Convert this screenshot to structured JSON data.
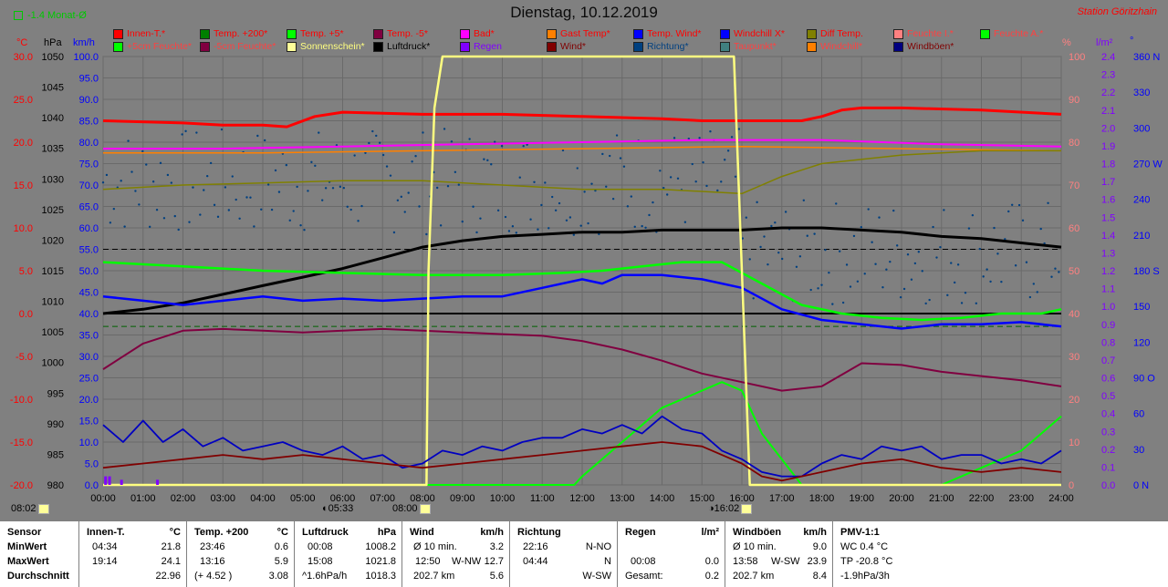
{
  "toggle_label": "-1.4 Monat-Ø",
  "title": "Dienstag, 10.12.2019",
  "station": "Station Göritzhain",
  "units_left": [
    "°C",
    "hPa",
    "km/h"
  ],
  "units_right": [
    "%",
    "l/m²",
    "°"
  ],
  "legend_row1": [
    {
      "label": "Innen-T.*",
      "color": "#ff0000",
      "text_color": "#ff0000"
    },
    {
      "label": "Temp. +200*",
      "color": "#008000",
      "text_color": "#ff0000"
    },
    {
      "label": "Temp. +5*",
      "color": "#00ff00",
      "text_color": "#ff0000"
    },
    {
      "label": "Temp. -5*",
      "color": "#800040",
      "text_color": "#ff0000"
    },
    {
      "label": "Bad*",
      "color": "#ff00ff",
      "text_color": "#ff0000"
    },
    {
      "label": "Gast Temp*",
      "color": "#ff8000",
      "text_color": "#ff0000"
    },
    {
      "label": "Temp. Wind*",
      "color": "#0000ff",
      "text_color": "#ff0000"
    },
    {
      "label": "Windchill X*",
      "color": "#0000ff",
      "text_color": "#ff0000"
    },
    {
      "label": "Diff Temp.",
      "color": "#808000",
      "text_color": "#ff0000"
    },
    {
      "label": "Feuchte I.*",
      "color": "#ff8080",
      "text_color": "#ff4040"
    },
    {
      "label": "Feuchte A.*",
      "color": "#00ff00",
      "text_color": "#ff4040"
    }
  ],
  "legend_row2": [
    {
      "label": "+5cm Feuchte*",
      "color": "#00ff00",
      "text_color": "#ff4040"
    },
    {
      "label": "-5cm Feuchte*",
      "color": "#800040",
      "text_color": "#ff4040"
    },
    {
      "label": "Sonnenschein*",
      "color": "#ffff99",
      "text_color": "#ffff80"
    },
    {
      "label": "Luftdruck*",
      "color": "#000000",
      "text_color": "#000000"
    },
    {
      "label": "Regen",
      "color": "#8000ff",
      "text_color": "#8000ff"
    },
    {
      "label": "Wind*",
      "color": "#800000",
      "text_color": "#800000"
    },
    {
      "label": "Richtung*",
      "color": "#004080",
      "text_color": "#004080"
    },
    {
      "label": "Taupunkt*",
      "color": "#408080",
      "text_color": "#ff4040"
    },
    {
      "label": "Windchill*",
      "color": "#ff8000",
      "text_color": "#ff4040"
    },
    {
      "label": "Windböen*",
      "color": "#000080",
      "text_color": "#800000"
    }
  ],
  "sun": {
    "rise": "08:02",
    "set": "16:02",
    "rise_marker": "05:33",
    "noon": "08:00",
    "set_marker": "16:02"
  },
  "chart_data": {
    "type": "line",
    "x_unit": "hour",
    "xlim": [
      0,
      24
    ],
    "x_ticks": [
      "00:00",
      "01:00",
      "02:00",
      "03:00",
      "04:00",
      "05:00",
      "06:00",
      "07:00",
      "08:00",
      "09:00",
      "10:00",
      "11:00",
      "12:00",
      "13:00",
      "14:00",
      "15:00",
      "16:00",
      "17:00",
      "18:00",
      "19:00",
      "20:00",
      "21:00",
      "22:00",
      "23:00",
      "24:00"
    ],
    "axes": {
      "temp": {
        "label": "°C",
        "range": [
          -20,
          30
        ],
        "ticks": [
          "30.0",
          "25.0",
          "20.0",
          "15.0",
          "10.0",
          "5.0",
          "0.0",
          "-5.0",
          "-10.0",
          "-15.0",
          "-20.0"
        ],
        "color": "#ff0000"
      },
      "pressure": {
        "label": "hPa",
        "range": [
          980,
          1050
        ],
        "ticks": [
          "1050",
          "1045",
          "1040",
          "1035",
          "1030",
          "1025",
          "1020",
          "1015",
          "1010",
          "1005",
          "1000",
          "995",
          "990",
          "985",
          "980"
        ],
        "color": "#000000"
      },
      "wind": {
        "label": "km/h",
        "range": [
          0,
          100
        ],
        "ticks": [
          "100.0",
          "95.0",
          "90.0",
          "85.0",
          "80.0",
          "75.0",
          "70.0",
          "65.0",
          "60.0",
          "55.0",
          "50.0",
          "45.0",
          "40.0",
          "35.0",
          "30.0",
          "25.0",
          "20.0",
          "15.0",
          "10.0",
          "5.0",
          "0.0"
        ],
        "color": "#0000ff"
      },
      "humidity": {
        "label": "%",
        "range": [
          0,
          100
        ],
        "ticks": [
          "100",
          "90",
          "80",
          "70",
          "60",
          "50",
          "40",
          "30",
          "20",
          "10",
          "0"
        ],
        "color": "#ff8080"
      },
      "rain": {
        "label": "l/m²",
        "range": [
          0,
          2.5
        ],
        "ticks": [
          "2.4",
          "2.3",
          "2.2",
          "2.1",
          "2.0",
          "1.9",
          "1.8",
          "1.7",
          "1.6",
          "1.5",
          "1.4",
          "1.3",
          "1.2",
          "1.1",
          "1.0",
          "0.9",
          "0.8",
          "0.7",
          "0.6",
          "0.5",
          "0.4",
          "0.3",
          "0.2",
          "0.1",
          "0.0"
        ],
        "color": "#8000ff"
      },
      "direction": {
        "label": "°",
        "range": [
          0,
          360
        ],
        "ticks": [
          "360 N",
          "330",
          "300",
          "270 W",
          "240",
          "210",
          "180 S",
          "150",
          "120",
          "90 O",
          "60",
          "30",
          "0 N"
        ],
        "color": "#0000ff"
      }
    },
    "series": [
      {
        "name": "Innen-T.*",
        "axis": "wind",
        "color": "#ff0000",
        "width": 3,
        "x": [
          0,
          2,
          3,
          4,
          4.6,
          5.3,
          6,
          8,
          10,
          12,
          14,
          15,
          17.5,
          18,
          18.5,
          19,
          20,
          22,
          24
        ],
        "y": [
          85,
          84.5,
          84,
          84,
          83.6,
          86,
          87,
          86.5,
          86.5,
          86,
          85.5,
          85,
          85,
          86,
          87.5,
          88,
          88,
          87.5,
          86.5
        ]
      },
      {
        "name": "Bad*",
        "axis": "wind",
        "color": "#ff00ff",
        "width": 2,
        "x": [
          0,
          3,
          6,
          9,
          12,
          15,
          18,
          21,
          24
        ],
        "y": [
          78.5,
          78.5,
          79,
          79.5,
          80,
          80.5,
          80.5,
          79.5,
          79
        ]
      },
      {
        "name": "Gast Temp*",
        "axis": "wind",
        "color": "#ff8000",
        "width": 1.5,
        "x": [
          0,
          4,
          8,
          12,
          16,
          20,
          24
        ],
        "y": [
          77.5,
          77.5,
          78,
          78.5,
          79,
          78.5,
          78
        ]
      },
      {
        "name": "Diff Temp.",
        "axis": "wind",
        "color": "#808000",
        "width": 1.5,
        "x": [
          0,
          2,
          4,
          6,
          8,
          10,
          12,
          14,
          16,
          17,
          18,
          20,
          22,
          24
        ],
        "y": [
          69,
          70,
          70.5,
          71,
          71,
          70,
          69,
          69,
          68,
          72,
          75,
          77,
          78,
          78
        ]
      },
      {
        "name": "Luftdruck*",
        "axis": "wind",
        "color": "#000000",
        "width": 3,
        "x": [
          0,
          1,
          2,
          3,
          4,
          5,
          6,
          7,
          8,
          9,
          10,
          11,
          12,
          13,
          14,
          15,
          16,
          17,
          18,
          19,
          20,
          21,
          22,
          23,
          24
        ],
        "y": [
          40,
          41,
          42.5,
          44.5,
          46.5,
          48.5,
          50.5,
          53,
          55.5,
          57,
          58,
          58.5,
          59,
          59,
          59.5,
          59.5,
          59.5,
          60,
          60,
          59.5,
          59,
          58,
          57.5,
          56.5,
          55.5
        ]
      },
      {
        "name": "Feuchte A.*",
        "axis": "humidity",
        "color": "#00ff00",
        "width": 2.5,
        "x": [
          0,
          2,
          4,
          6,
          8,
          10,
          11.5,
          12.5,
          13.5,
          14.5,
          15.5,
          16.5,
          17.5,
          18.5,
          19.5,
          20.5,
          21.5,
          22.5,
          23.5,
          24
        ],
        "y": [
          52,
          51,
          50,
          49.5,
          49,
          49,
          49.5,
          50,
          51,
          52,
          52,
          47,
          42,
          40,
          39,
          38.5,
          39,
          40,
          40,
          41
        ]
      },
      {
        "name": "+5cm Feuchte*",
        "axis": "temp",
        "color": "#00ff00",
        "width": 2,
        "x": [
          0,
          8,
          11.8,
          12,
          12.5,
          13.5,
          14,
          15.5,
          16,
          16.5,
          17.5,
          18,
          19,
          20,
          21,
          22,
          23,
          24
        ],
        "y": [
          -20,
          -20,
          -20,
          -19,
          -17,
          -13,
          -11,
          -8,
          -9,
          -14,
          -20,
          -20,
          -20,
          -20,
          -20,
          -18,
          -16,
          -12
        ]
      },
      {
        "name": "Temp. -5*",
        "axis": "temp",
        "color": "#800040",
        "width": 2,
        "x": [
          0,
          1,
          2,
          3,
          4,
          5,
          6,
          7,
          8,
          9,
          10,
          11,
          12,
          13,
          14,
          15,
          16,
          17,
          18,
          19,
          20,
          21,
          22,
          23,
          24
        ],
        "y": [
          -6.5,
          -3.5,
          -2,
          -1.8,
          -2,
          -2.2,
          -2,
          -1.8,
          -2,
          -2.2,
          -2.4,
          -2.6,
          -3.2,
          -4.2,
          -5.5,
          -7,
          -8,
          -9,
          -8.5,
          -5.8,
          -6,
          -6.8,
          -7.3,
          -7.8,
          -8.5
        ]
      },
      {
        "name": "Temp. Wind*",
        "axis": "wind",
        "color": "#0000ff",
        "width": 2.5,
        "x": [
          0,
          1,
          2,
          3,
          4,
          5,
          6,
          7,
          8,
          9,
          10,
          11,
          12,
          12.5,
          13,
          14,
          15,
          16,
          17,
          18,
          19,
          20,
          21,
          22,
          23,
          24
        ],
        "y": [
          44,
          43,
          42,
          43,
          44,
          43,
          43.5,
          43,
          43.5,
          44,
          44,
          46,
          48,
          47,
          49,
          49,
          48,
          46,
          41,
          38.5,
          37.5,
          36.5,
          37.5,
          37.5,
          38,
          37
        ]
      },
      {
        "name": "Sonnenschein*",
        "axis": "humidity",
        "color": "#ffff80",
        "width": 2.5,
        "x": [
          0,
          8.1,
          8.15,
          8.3,
          8.5,
          9,
          15.8,
          16.0,
          16.2,
          24
        ],
        "y": [
          0,
          0,
          50,
          88,
          100,
          100,
          100,
          50,
          0,
          0
        ]
      },
      {
        "name": "Windböen*",
        "axis": "wind",
        "color": "#0000c0",
        "width": 1.8,
        "x": [
          0,
          0.5,
          1,
          1.5,
          2,
          2.5,
          3,
          3.5,
          4,
          4.5,
          5,
          5.5,
          6,
          6.5,
          7,
          7.5,
          8,
          8.5,
          9,
          9.5,
          10,
          10.5,
          11,
          11.5,
          12,
          12.5,
          13,
          13.5,
          14,
          14.5,
          15,
          15.5,
          16,
          16.5,
          17,
          17.5,
          18,
          18.5,
          19,
          19.5,
          20,
          20.5,
          21,
          21.5,
          22,
          22.5,
          23,
          23.5,
          24
        ],
        "y": [
          14,
          10,
          15,
          10,
          13,
          9,
          11,
          8,
          9,
          10,
          8,
          7,
          9,
          6,
          7,
          4,
          5,
          8,
          7,
          9,
          8,
          10,
          11,
          11,
          13,
          12,
          14,
          12,
          16,
          13,
          12,
          8,
          6,
          3,
          2,
          2,
          5,
          7,
          6,
          9,
          8,
          9,
          6,
          7,
          7,
          5,
          6,
          5,
          8
        ]
      },
      {
        "name": "Wind*",
        "axis": "wind",
        "color": "#800000",
        "width": 1.8,
        "x": [
          0,
          1,
          2,
          3,
          4,
          5,
          6,
          7,
          8,
          9,
          10,
          11,
          12,
          13,
          14,
          15,
          16,
          16.5,
          17,
          18,
          19,
          20,
          21,
          22,
          23,
          24
        ],
        "y": [
          4,
          5,
          6,
          7,
          6,
          7,
          6,
          5,
          4,
          5,
          6,
          7,
          8,
          9,
          10,
          9,
          5,
          2,
          1,
          3,
          5,
          6,
          4,
          3,
          4,
          3
        ]
      }
    ],
    "direction_dots": {
      "axis": "direction",
      "color": "#004080"
    },
    "rain_marks": {
      "axis": "rain",
      "color": "#8000ff",
      "x": [
        0.05,
        0.15,
        0.45,
        1.35
      ],
      "y": [
        0.05,
        0.05,
        0.03,
        0.03
      ]
    }
  },
  "footer": {
    "sensor": {
      "title": "Sensor",
      "rows": [
        "MinWert",
        "MaxWert",
        "Durchschnitt"
      ]
    },
    "innen": {
      "title": "Innen-T.",
      "unit": "°C",
      "rows": [
        [
          "04:34",
          "21.8"
        ],
        [
          "19:14",
          "24.1"
        ],
        [
          "",
          "22.96"
        ]
      ]
    },
    "temp200": {
      "title": "Temp. +200",
      "unit": "°C",
      "rows": [
        [
          "23:46",
          "0.6"
        ],
        [
          "13:16",
          "5.9"
        ],
        [
          "(+ 4.52 )",
          "3.08"
        ]
      ]
    },
    "luftdruck": {
      "title": "Luftdruck",
      "unit": "hPa",
      "rows": [
        [
          "00:08",
          "1008.2"
        ],
        [
          "15:08",
          "1021.8"
        ],
        [
          "^1.6hPa/h",
          "1018.3"
        ]
      ]
    },
    "wind": {
      "title": "Wind",
      "unit": "km/h",
      "rows": [
        [
          "Ø 10 min.",
          "",
          "3.2"
        ],
        [
          "12:50",
          "W-NW",
          "12.7"
        ],
        [
          "202.7 km",
          "",
          "5.6"
        ]
      ]
    },
    "richtung": {
      "title": "Richtung",
      "rows": [
        [
          "22:16",
          "N-NO"
        ],
        [
          "04:44",
          "N"
        ],
        [
          "",
          "W-SW"
        ]
      ]
    },
    "regen": {
      "title": "Regen",
      "unit": "l/m²",
      "rows": [
        [
          "",
          ""
        ],
        [
          "00:08",
          "0.0"
        ],
        [
          "Gesamt:",
          "0.2"
        ]
      ]
    },
    "windboeen": {
      "title": "Windböen",
      "unit": "km/h",
      "rows": [
        [
          "Ø 10 min.",
          "",
          "9.0"
        ],
        [
          "13:58",
          "W-SW",
          "23.9"
        ],
        [
          "202.7 km",
          "",
          "8.4"
        ]
      ]
    },
    "pmv": {
      "title": "PMV-1:1",
      "rows": [
        "WC 0.4 °C",
        "TP -20.8 °C",
        "-1.9hPa/3h"
      ]
    }
  }
}
